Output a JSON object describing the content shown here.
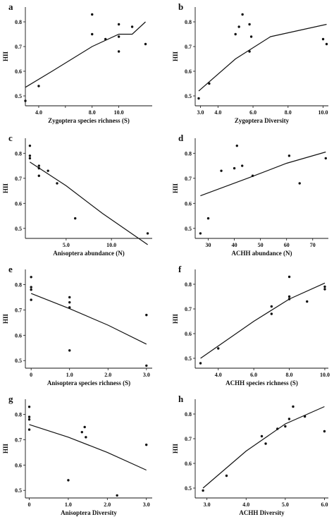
{
  "chart_data": [
    {
      "type": "scatter",
      "panel_label": "a",
      "xlabel": "Zygoptera species richness (S)",
      "ylabel": "HII",
      "xlim": [
        3.0,
        12.5
      ],
      "ylim": [
        0.46,
        0.86
      ],
      "xticks": [
        4.0,
        6.0,
        8.0,
        10.0
      ],
      "xtick_labels": [
        "4.0",
        "",
        "8.0",
        "10.0"
      ],
      "yticks": [
        0.5,
        0.6,
        0.7,
        0.8
      ],
      "ytick_labels": [
        "0.5",
        "0.6",
        "0.7",
        "0.8"
      ],
      "points": [
        [
          3,
          0.48
        ],
        [
          4,
          0.54
        ],
        [
          8,
          0.83
        ],
        [
          8,
          0.75
        ],
        [
          9,
          0.73
        ],
        [
          10,
          0.79
        ],
        [
          10,
          0.74
        ],
        [
          10,
          0.68
        ],
        [
          11,
          0.78
        ],
        [
          12,
          0.71
        ]
      ],
      "fit_line": [
        [
          3,
          0.535
        ],
        [
          5,
          0.6
        ],
        [
          8,
          0.7
        ],
        [
          10,
          0.75
        ],
        [
          11,
          0.75
        ],
        [
          12,
          0.8
        ]
      ]
    },
    {
      "type": "scatter",
      "panel_label": "b",
      "xlabel": "Zygoptera Diversity",
      "ylabel": "HII",
      "xlim": [
        2.7,
        10.3
      ],
      "ylim": [
        0.46,
        0.86
      ],
      "xticks": [
        3.0,
        4.0,
        6.0,
        8.0,
        10.0
      ],
      "xtick_labels": [
        "3.0",
        "4.0",
        "6.0",
        "8.0",
        "10.0"
      ],
      "yticks": [
        0.5,
        0.6,
        0.7,
        0.8
      ],
      "ytick_labels": [
        "0.5",
        "0.6",
        "0.7",
        "0.8"
      ],
      "points": [
        [
          2.9,
          0.49
        ],
        [
          3.5,
          0.55
        ],
        [
          5.0,
          0.75
        ],
        [
          5.2,
          0.78
        ],
        [
          5.4,
          0.83
        ],
        [
          5.8,
          0.79
        ],
        [
          5.9,
          0.74
        ],
        [
          5.8,
          0.68
        ],
        [
          10.0,
          0.73
        ],
        [
          10.2,
          0.71
        ]
      ],
      "fit_line": [
        [
          2.9,
          0.52
        ],
        [
          5,
          0.65
        ],
        [
          7,
          0.74
        ],
        [
          10.2,
          0.79
        ]
      ]
    },
    {
      "type": "scatter",
      "panel_label": "c",
      "xlabel": "Anisoptera abundance (N)",
      "ylabel": "HII",
      "xlim": [
        0.5,
        14.5
      ],
      "ylim": [
        0.46,
        0.86
      ],
      "xticks": [
        5.0,
        10.0
      ],
      "xtick_labels": [
        "5.0",
        "10.0"
      ],
      "yticks": [
        0.5,
        0.6,
        0.7,
        0.8
      ],
      "ytick_labels": [
        "0.5",
        "0.6",
        "0.7",
        "0.8"
      ],
      "points": [
        [
          1,
          0.83
        ],
        [
          1,
          0.79
        ],
        [
          1,
          0.78
        ],
        [
          2,
          0.75
        ],
        [
          2,
          0.74
        ],
        [
          2,
          0.71
        ],
        [
          3,
          0.73
        ],
        [
          4,
          0.68
        ],
        [
          6,
          0.54
        ],
        [
          14,
          0.48
        ]
      ],
      "fit_line": [
        [
          1,
          0.765
        ],
        [
          5,
          0.67
        ],
        [
          9,
          0.56
        ],
        [
          14,
          0.435
        ]
      ]
    },
    {
      "type": "scatter",
      "panel_label": "d",
      "xlabel": "ACHH abundance (N)",
      "ylabel": "HII",
      "xlim": [
        25,
        76
      ],
      "ylim": [
        0.46,
        0.86
      ],
      "xticks": [
        30,
        40,
        50,
        60,
        70
      ],
      "xtick_labels": [
        "30",
        "40",
        "50",
        "60",
        "70"
      ],
      "yticks": [
        0.5,
        0.6,
        0.7,
        0.8
      ],
      "ytick_labels": [
        "0.5",
        "0.6",
        "0.7",
        "0.8"
      ],
      "points": [
        [
          27,
          0.48
        ],
        [
          30,
          0.54
        ],
        [
          35,
          0.73
        ],
        [
          40,
          0.74
        ],
        [
          41,
          0.83
        ],
        [
          43,
          0.75
        ],
        [
          47,
          0.71
        ],
        [
          61,
          0.79
        ],
        [
          65,
          0.68
        ],
        [
          75,
          0.78
        ]
      ],
      "fit_line": [
        [
          27,
          0.63
        ],
        [
          45,
          0.7
        ],
        [
          60,
          0.76
        ],
        [
          75,
          0.805
        ]
      ]
    },
    {
      "type": "scatter",
      "panel_label": "e",
      "xlabel": "Anisoptera species richness (S)",
      "ylabel": "HII",
      "xlim": [
        -0.15,
        3.15
      ],
      "ylim": [
        0.47,
        0.86
      ],
      "xticks": [
        0,
        1.0,
        2.0,
        3.0
      ],
      "xtick_labels": [
        "0",
        "1.0",
        "2.0",
        "3.0"
      ],
      "yticks": [
        0.5,
        0.6,
        0.7,
        0.8
      ],
      "ytick_labels": [
        "0.5",
        "0.6",
        "0.7",
        "0.8"
      ],
      "points": [
        [
          0,
          0.83
        ],
        [
          0,
          0.79
        ],
        [
          0,
          0.78
        ],
        [
          0,
          0.74
        ],
        [
          1,
          0.75
        ],
        [
          1,
          0.73
        ],
        [
          1,
          0.71
        ],
        [
          1,
          0.54
        ],
        [
          3,
          0.68
        ],
        [
          3,
          0.48
        ]
      ],
      "fit_line": [
        [
          0,
          0.765
        ],
        [
          1,
          0.705
        ],
        [
          2,
          0.64
        ],
        [
          3,
          0.565
        ]
      ]
    },
    {
      "type": "scatter",
      "panel_label": "f",
      "xlabel": "ACHH species richness (S)",
      "ylabel": "HII",
      "xlim": [
        2.7,
        10.2
      ],
      "ylim": [
        0.46,
        0.86
      ],
      "xticks": [
        4.0,
        6.0,
        8.0,
        10.0
      ],
      "xtick_labels": [
        "4.0",
        "6.0",
        "8.0",
        "10.0"
      ],
      "yticks": [
        0.5,
        0.6,
        0.7,
        0.8
      ],
      "ytick_labels": [
        "0.5",
        "0.6",
        "0.7",
        "0.8"
      ],
      "points": [
        [
          3,
          0.48
        ],
        [
          4,
          0.54
        ],
        [
          7,
          0.71
        ],
        [
          7,
          0.68
        ],
        [
          8,
          0.83
        ],
        [
          8,
          0.75
        ],
        [
          8,
          0.74
        ],
        [
          9,
          0.73
        ],
        [
          10,
          0.79
        ],
        [
          10,
          0.78
        ]
      ],
      "fit_line": [
        [
          3,
          0.5
        ],
        [
          6,
          0.65
        ],
        [
          8,
          0.74
        ],
        [
          10,
          0.805
        ]
      ]
    },
    {
      "type": "scatter",
      "panel_label": "g",
      "xlabel": "Anisoptera Diversity",
      "ylabel": "HII",
      "xlim": [
        -0.1,
        3.15
      ],
      "ylim": [
        0.47,
        0.86
      ],
      "xticks": [
        0,
        1.0,
        2.0,
        3.0
      ],
      "xtick_labels": [
        "0",
        "1.0",
        "2.0",
        "3.0"
      ],
      "yticks": [
        0.5,
        0.6,
        0.7,
        0.8
      ],
      "ytick_labels": [
        "0.5",
        "0.6",
        "0.7",
        "0.8"
      ],
      "points": [
        [
          0,
          0.83
        ],
        [
          0,
          0.79
        ],
        [
          0,
          0.78
        ],
        [
          0,
          0.74
        ],
        [
          1.0,
          0.54
        ],
        [
          1.35,
          0.73
        ],
        [
          1.42,
          0.75
        ],
        [
          1.45,
          0.71
        ],
        [
          2.25,
          0.48
        ],
        [
          3.0,
          0.68
        ]
      ],
      "fit_line": [
        [
          0,
          0.76
        ],
        [
          1,
          0.71
        ],
        [
          2,
          0.65
        ],
        [
          3,
          0.58
        ]
      ]
    },
    {
      "type": "scatter",
      "panel_label": "h",
      "xlabel": "ACHH Diversity",
      "ylabel": "HII",
      "xlim": [
        2.7,
        6.1
      ],
      "ylim": [
        0.46,
        0.86
      ],
      "xticks": [
        3.0,
        4.0,
        5.0,
        6.0
      ],
      "xtick_labels": [
        "3.0",
        "4.0",
        "5.0",
        "6.0"
      ],
      "yticks": [
        0.5,
        0.6,
        0.7,
        0.8
      ],
      "ytick_labels": [
        "0.5",
        "0.6",
        "0.7",
        "0.8"
      ],
      "points": [
        [
          2.9,
          0.49
        ],
        [
          3.5,
          0.55
        ],
        [
          4.4,
          0.71
        ],
        [
          4.5,
          0.68
        ],
        [
          4.8,
          0.74
        ],
        [
          5.0,
          0.75
        ],
        [
          5.1,
          0.78
        ],
        [
          5.2,
          0.83
        ],
        [
          5.5,
          0.79
        ],
        [
          6.0,
          0.73
        ]
      ],
      "fit_line": [
        [
          2.9,
          0.5
        ],
        [
          4,
          0.65
        ],
        [
          5,
          0.76
        ],
        [
          6,
          0.83
        ]
      ]
    }
  ]
}
